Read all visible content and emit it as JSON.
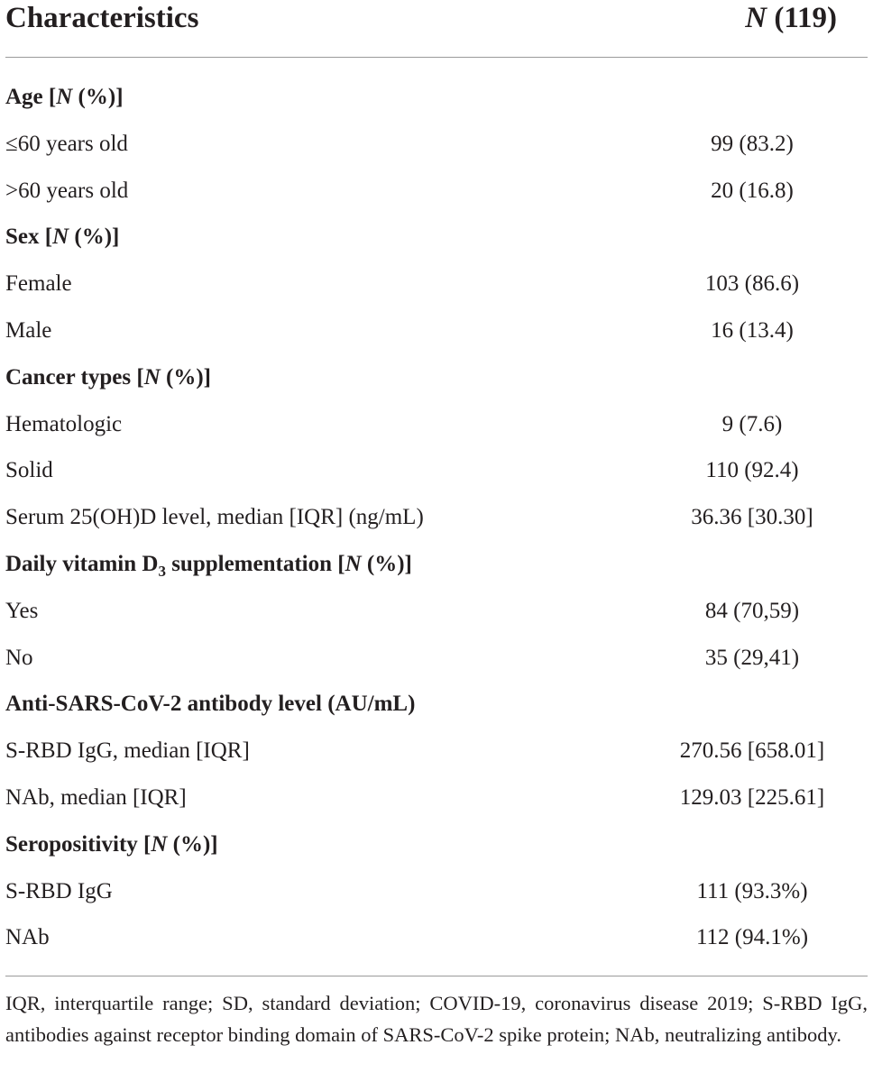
{
  "table": {
    "header": {
      "characteristics": "Characteristics",
      "n_italic": "N",
      "n_value": " (119)"
    },
    "rows": [
      {
        "type": "section",
        "pre": "Age [",
        "italic": "N",
        "post": " (%)]"
      },
      {
        "type": "data",
        "label": "≤60 years old",
        "value": "99 (83.2)"
      },
      {
        "type": "data",
        "label": ">60 years old",
        "value": "20 (16.8)"
      },
      {
        "type": "section",
        "pre": "Sex [",
        "italic": "N",
        "post": " (%)]"
      },
      {
        "type": "data",
        "label": "Female",
        "value": "103 (86.6)"
      },
      {
        "type": "data",
        "label": "Male",
        "value": "16 (13.4)"
      },
      {
        "type": "section",
        "pre": "Cancer types [",
        "italic": "N",
        "post": " (%)]"
      },
      {
        "type": "data",
        "label": "Hematologic",
        "value": "9 (7.6)"
      },
      {
        "type": "data",
        "label": "Solid",
        "value": "110 (92.4)"
      },
      {
        "type": "data",
        "label": "Serum 25(OH)D level, median [IQR] (ng/mL)",
        "value": "36.36 [30.30]"
      },
      {
        "type": "section_sub",
        "pre": "Daily vitamin D",
        "sub": "3",
        "mid": " supplementation [",
        "italic": "N",
        "post": " (%)]"
      },
      {
        "type": "data",
        "label": "Yes",
        "value": "84 (70,59)"
      },
      {
        "type": "data",
        "label": "No",
        "value": "35 (29,41)"
      },
      {
        "type": "section_plain",
        "label": "Anti-SARS-CoV-2 antibody level (AU/mL)"
      },
      {
        "type": "data",
        "label": "S-RBD IgG, median [IQR]",
        "value": "270.56 [658.01]"
      },
      {
        "type": "data",
        "label": "NAb, median [IQR]",
        "value": "129.03 [225.61]"
      },
      {
        "type": "section",
        "pre": "Seropositivity [",
        "italic": "N",
        "post": " (%)]"
      },
      {
        "type": "data",
        "label": "S-RBD IgG",
        "value": "111 (93.3%)"
      },
      {
        "type": "data",
        "label": "NAb",
        "value": "112 (94.1%)"
      }
    ]
  },
  "footnote": "IQR, interquartile range; SD, standard deviation; COVID-19, coronavirus disease 2019; S-RBD IgG, antibodies against receptor binding domain of SARS-CoV-2 spike protein; NAb, neutralizing antibody."
}
